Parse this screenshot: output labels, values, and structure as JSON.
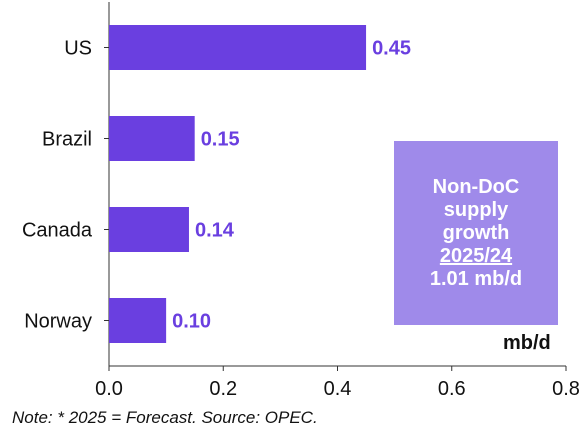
{
  "chart_data": {
    "type": "bar",
    "orientation": "horizontal",
    "categories": [
      "US",
      "Brazil",
      "Canada",
      "Norway"
    ],
    "values": [
      0.45,
      0.15,
      0.14,
      0.1
    ],
    "value_labels": [
      "0.45",
      "0.15",
      "0.14",
      "0.10"
    ],
    "xlim": [
      0,
      0.8
    ],
    "x_ticks": [
      "0.0",
      "0.2",
      "0.4",
      "0.6",
      "0.8"
    ],
    "unit_label": "mb/d",
    "grid": false,
    "bar_color": "#6a3fe0",
    "label_color": "#6a3fe0"
  },
  "callout": {
    "line1": "Non-DoC",
    "line2": "supply",
    "line3": "growth",
    "line4": "2025/24",
    "line5": "1.01 mb/d",
    "background": "#9f8aea"
  },
  "note": "Note: * 2025 = Forecast. Source: OPEC."
}
